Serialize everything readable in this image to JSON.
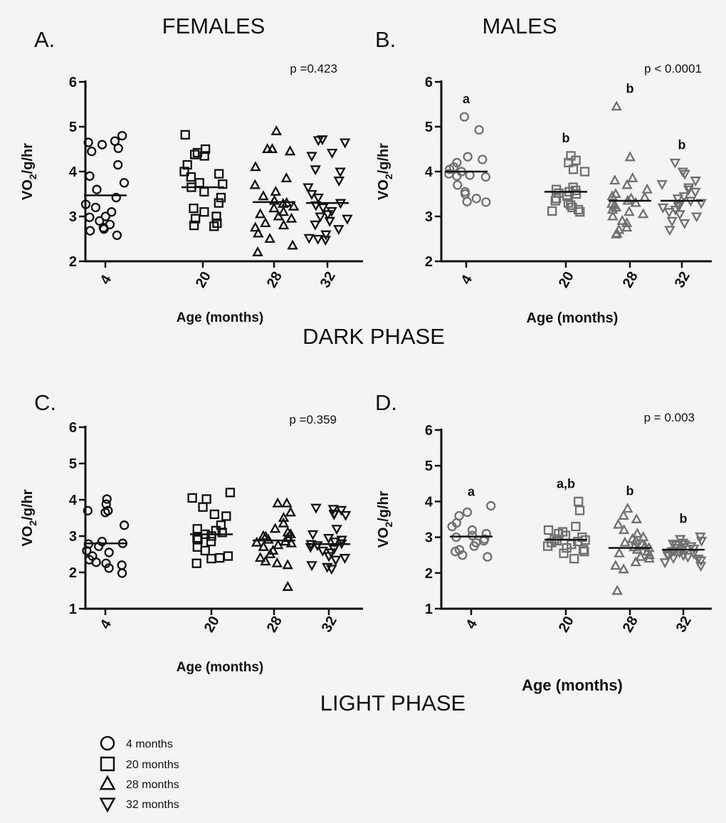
{
  "figure": {
    "col_titles": [
      "FEMALES",
      "MALES"
    ],
    "phase_titles": [
      "DARK PHASE",
      "LIGHT PHASE"
    ]
  },
  "legend": [
    {
      "shape": "circle",
      "label": "4 months"
    },
    {
      "shape": "square",
      "label": "20 months"
    },
    {
      "shape": "triangle-up",
      "label": "28 months"
    },
    {
      "shape": "triangle-down",
      "label": "32 months"
    }
  ],
  "colors": {
    "female_marker": "#111111",
    "male_marker": "#707070",
    "axis": "#111111",
    "background": "#f4f4f4"
  },
  "chart_data": [
    {
      "type": "scatter",
      "panel_label": "A.",
      "pvalue": "p =0.423",
      "xlabel": "Age (months)",
      "ylabel": "VO2/g/hr",
      "ylim": [
        2,
        6
      ],
      "yticks": [
        2,
        3,
        4,
        5,
        6
      ],
      "categories": [
        "4",
        "20",
        "28",
        "32"
      ],
      "letters": [
        "",
        "",
        "",
        ""
      ],
      "marker_color": "#111111",
      "series": [
        {
          "age": "4",
          "shape": "circle",
          "mean": 3.47,
          "values": [
            4.8,
            4.68,
            4.65,
            4.6,
            4.52,
            4.45,
            4.15,
            3.9,
            3.75,
            3.6,
            3.42,
            3.27,
            3.2,
            3.1,
            3.0,
            2.98,
            2.9,
            2.82,
            2.75,
            2.72,
            2.68,
            2.58
          ]
        },
        {
          "age": "20",
          "shape": "square",
          "mean": 3.65,
          "values": [
            4.82,
            4.5,
            4.42,
            4.38,
            4.35,
            4.15,
            4.0,
            3.95,
            3.88,
            3.75,
            3.72,
            3.65,
            3.55,
            3.42,
            3.3,
            3.18,
            3.1,
            3.0,
            2.95,
            2.85,
            2.8,
            2.78
          ]
        },
        {
          "age": "28",
          "shape": "triangle-up",
          "mean": 3.32,
          "values": [
            4.9,
            4.5,
            4.5,
            4.45,
            4.1,
            3.85,
            3.7,
            3.55,
            3.45,
            3.35,
            3.3,
            3.28,
            3.22,
            3.18,
            3.1,
            3.05,
            3.0,
            2.95,
            2.85,
            2.8,
            2.75,
            2.62,
            2.5,
            2.35,
            2.2
          ]
        },
        {
          "age": "32",
          "shape": "triangle-down",
          "mean": 3.3,
          "values": [
            4.72,
            4.7,
            4.65,
            4.42,
            4.35,
            4.05,
            4.0,
            3.8,
            3.65,
            3.5,
            3.42,
            3.3,
            3.25,
            3.2,
            3.12,
            3.05,
            3.0,
            2.95,
            2.9,
            2.82,
            2.72,
            2.6,
            2.52,
            2.5,
            2.48
          ]
        }
      ]
    },
    {
      "type": "scatter",
      "panel_label": "B.",
      "pvalue": "p < 0.0001",
      "xlabel": "Age (months)",
      "ylabel": "VO2/g/hr",
      "ylim": [
        2,
        6
      ],
      "yticks": [
        2,
        3,
        4,
        5,
        6
      ],
      "categories": [
        "4",
        "20",
        "28",
        "32"
      ],
      "letters": [
        "a",
        "b",
        "b",
        "b"
      ],
      "marker_color": "#707070",
      "series": [
        {
          "age": "4",
          "shape": "circle",
          "mean": 4.0,
          "values": [
            5.22,
            4.93,
            4.33,
            4.27,
            4.2,
            4.1,
            4.05,
            4.0,
            3.95,
            3.92,
            3.9,
            3.88,
            3.7,
            3.55,
            3.5,
            3.4,
            3.33,
            3.32
          ]
        },
        {
          "age": "20",
          "shape": "square",
          "mean": 3.55,
          "values": [
            4.35,
            4.25,
            4.2,
            4.05,
            4.0,
            3.65,
            3.6,
            3.58,
            3.55,
            3.52,
            3.5,
            3.45,
            3.4,
            3.35,
            3.3,
            3.25,
            3.2,
            3.15,
            3.12,
            3.1
          ]
        },
        {
          "age": "28",
          "shape": "triangle-up",
          "mean": 3.35,
          "values": [
            5.45,
            4.32,
            3.85,
            3.8,
            3.7,
            3.6,
            3.5,
            3.45,
            3.42,
            3.4,
            3.35,
            3.3,
            3.28,
            3.25,
            3.2,
            3.15,
            3.1,
            3.05,
            3.0,
            2.9,
            2.85,
            2.75,
            2.7,
            2.62,
            2.6
          ]
        },
        {
          "age": "32",
          "shape": "triangle-down",
          "mean": 3.35,
          "values": [
            4.2,
            4.0,
            3.95,
            3.8,
            3.72,
            3.65,
            3.6,
            3.55,
            3.45,
            3.4,
            3.35,
            3.3,
            3.28,
            3.25,
            3.22,
            3.2,
            3.15,
            3.1,
            3.05,
            3.0,
            2.9,
            2.85,
            2.7
          ]
        }
      ]
    },
    {
      "type": "scatter",
      "panel_label": "C.",
      "pvalue": "p =0.359",
      "xlabel": "Age (months)",
      "ylabel": "VO2/g/hr",
      "ylim": [
        1,
        6
      ],
      "yticks": [
        1,
        2,
        3,
        4,
        5,
        6
      ],
      "categories": [
        "4",
        "20",
        "28",
        "32"
      ],
      "letters": [
        "",
        "",
        "",
        ""
      ],
      "marker_color": "#111111",
      "series": [
        {
          "age": "4",
          "shape": "circle",
          "mean": 2.8,
          "values": [
            4.02,
            3.88,
            3.7,
            3.7,
            3.65,
            3.3,
            2.85,
            2.8,
            2.78,
            2.72,
            2.6,
            2.55,
            2.45,
            2.35,
            2.28,
            2.25,
            2.2,
            2.12,
            1.98
          ]
        },
        {
          "age": "20",
          "shape": "square",
          "mean": 3.05,
          "values": [
            4.2,
            4.05,
            4.02,
            3.8,
            3.6,
            3.55,
            3.3,
            3.2,
            3.15,
            3.1,
            3.05,
            3.0,
            2.95,
            2.9,
            2.85,
            2.7,
            2.6,
            2.45,
            2.4,
            2.38,
            2.25
          ]
        },
        {
          "age": "28",
          "shape": "triangle-up",
          "mean": 2.88,
          "values": [
            3.9,
            3.9,
            3.65,
            3.5,
            3.35,
            3.2,
            3.1,
            3.05,
            3.0,
            2.98,
            2.95,
            2.9,
            2.85,
            2.82,
            2.8,
            2.75,
            2.7,
            2.6,
            2.5,
            2.4,
            2.3,
            2.25,
            2.2,
            1.6
          ]
        },
        {
          "age": "32",
          "shape": "triangle-down",
          "mean": 2.78,
          "values": [
            3.78,
            3.75,
            3.72,
            3.62,
            3.6,
            3.58,
            3.2,
            3.05,
            2.95,
            2.9,
            2.85,
            2.8,
            2.78,
            2.75,
            2.7,
            2.65,
            2.6,
            2.55,
            2.45,
            2.4,
            2.35,
            2.2,
            2.15,
            2.1
          ]
        }
      ]
    },
    {
      "type": "scatter",
      "panel_label": "D.",
      "pvalue": "p = 0.003",
      "xlabel": "Age (months)",
      "ylabel": "VO2/g/hr",
      "ylim": [
        1,
        6
      ],
      "yticks": [
        1,
        2,
        3,
        4,
        5,
        6
      ],
      "categories": [
        "4",
        "20",
        "28",
        "32"
      ],
      "letters": [
        "a",
        "a,b",
        "b",
        "b"
      ],
      "marker_color": "#707070",
      "series": [
        {
          "age": "4",
          "shape": "circle",
          "mean": 3.02,
          "values": [
            3.88,
            3.7,
            3.6,
            3.4,
            3.3,
            3.2,
            3.1,
            3.05,
            3.0,
            2.95,
            2.9,
            2.85,
            2.75,
            2.65,
            2.6,
            2.5,
            2.45
          ]
        },
        {
          "age": "20",
          "shape": "square",
          "mean": 2.93,
          "values": [
            4.0,
            3.75,
            3.3,
            3.2,
            3.15,
            3.1,
            3.05,
            3.0,
            2.95,
            2.92,
            2.9,
            2.88,
            2.85,
            2.8,
            2.75,
            2.7,
            2.65,
            2.6,
            2.55,
            2.4
          ]
        },
        {
          "age": "28",
          "shape": "triangle-up",
          "mean": 2.7,
          "values": [
            3.8,
            3.6,
            3.5,
            3.35,
            3.2,
            3.1,
            3.0,
            2.95,
            2.9,
            2.85,
            2.8,
            2.75,
            2.72,
            2.7,
            2.65,
            2.6,
            2.55,
            2.5,
            2.45,
            2.4,
            2.3,
            2.2,
            2.1,
            1.5
          ]
        },
        {
          "age": "32",
          "shape": "triangle-down",
          "mean": 2.65,
          "values": [
            3.02,
            2.95,
            2.9,
            2.85,
            2.82,
            2.8,
            2.78,
            2.75,
            2.72,
            2.7,
            2.68,
            2.65,
            2.62,
            2.6,
            2.58,
            2.55,
            2.52,
            2.5,
            2.48,
            2.45,
            2.42,
            2.4,
            2.35,
            2.3,
            2.2
          ]
        }
      ]
    }
  ]
}
